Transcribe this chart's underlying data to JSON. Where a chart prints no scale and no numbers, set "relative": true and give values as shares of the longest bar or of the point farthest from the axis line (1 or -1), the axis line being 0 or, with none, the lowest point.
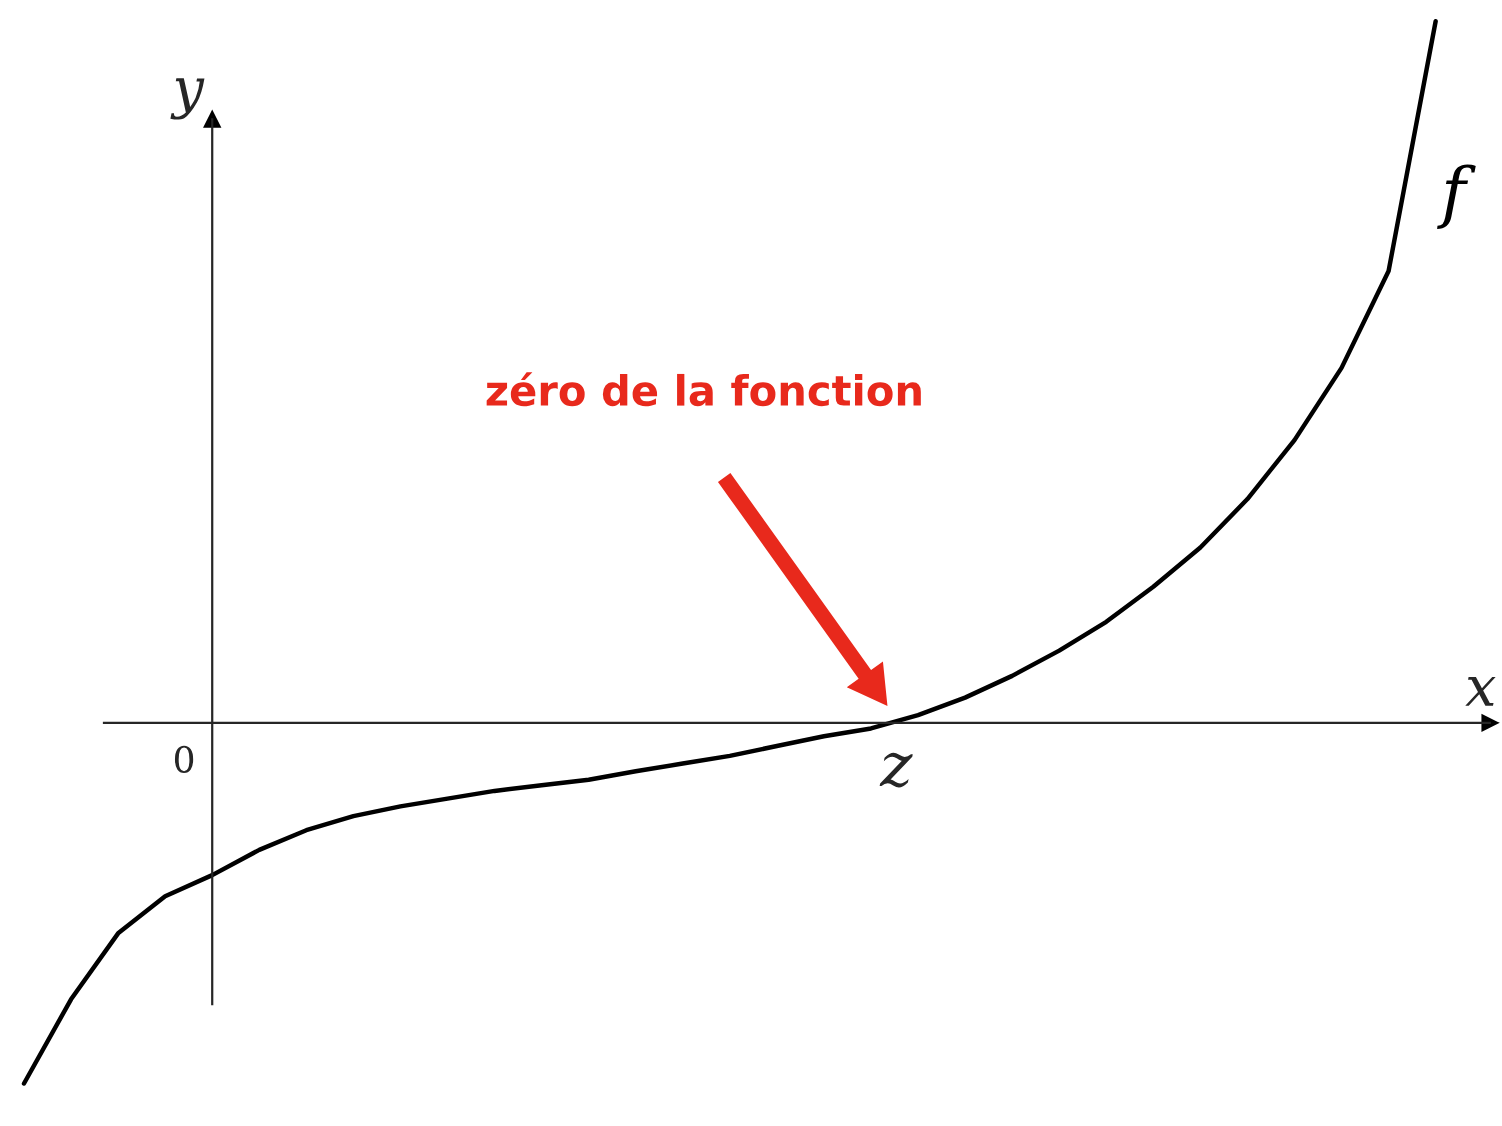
{
  "chart_data": {
    "type": "line",
    "relative": true,
    "xlabel": "x",
    "ylabel": "y",
    "annotations": [
      "zéro de la fonction",
      "0",
      "z"
    ],
    "categories": [
      null,
      null,
      null,
      null,
      null,
      null,
      null,
      null,
      null,
      null,
      null,
      null,
      null,
      null,
      null,
      null,
      null,
      null,
      null,
      null,
      null,
      null,
      null,
      null,
      null,
      null,
      null,
      null,
      null,
      null,
      null
    ],
    "series": [
      {
        "name": "f",
        "color": "#000000",
        "values": [
          -0.514,
          -0.394,
          -0.3,
          -0.247,
          -0.217,
          -0.181,
          -0.153,
          -0.133,
          -0.119,
          -0.108,
          -0.097,
          -0.089,
          -0.081,
          -0.069,
          -0.058,
          -0.047,
          -0.033,
          -0.019,
          -0.008,
          0.011,
          0.036,
          0.067,
          0.103,
          0.144,
          0.194,
          0.25,
          0.319,
          0.403,
          0.506,
          0.644,
          1
        ]
      }
    ],
    "legend": false,
    "grid": false,
    "marker": "none",
    "line_style": "solid"
  }
}
